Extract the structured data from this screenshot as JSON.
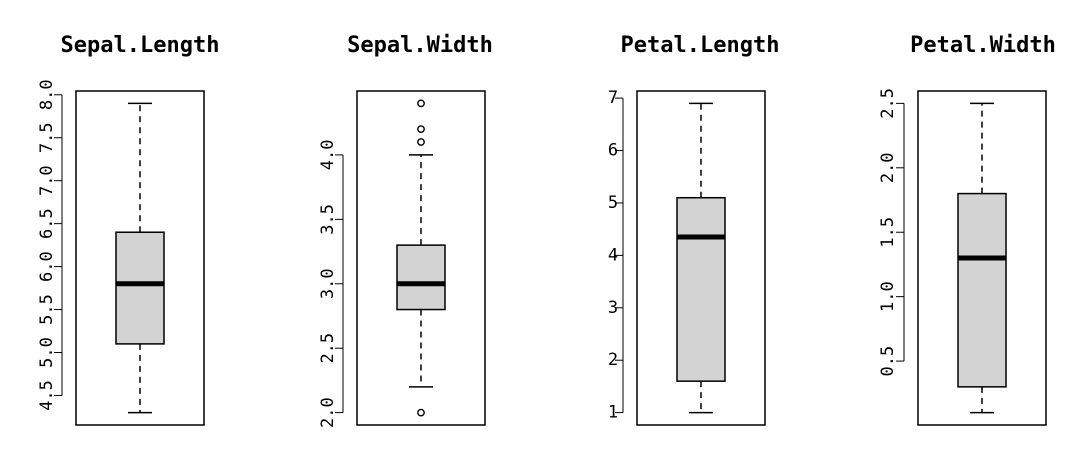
{
  "chart_data": [
    {
      "type": "boxplot",
      "title": "Sepal.Length",
      "ylim": [
        4.3,
        7.9
      ],
      "yticks": [
        4.5,
        5.0,
        5.5,
        6.0,
        6.5,
        7.0,
        7.5,
        8.0
      ],
      "ytick_labels": [
        "4.5",
        "5.0",
        "5.5",
        "6.0",
        "6.5",
        "7.0",
        "7.5",
        "8.0"
      ],
      "ytick_rotation": "vertical",
      "stats": {
        "whisker_low": 4.3,
        "q1": 5.1,
        "median": 5.8,
        "q3": 6.4,
        "whisker_high": 7.9
      },
      "outliers": []
    },
    {
      "type": "boxplot",
      "title": "Sepal.Width",
      "ylim": [
        2.0,
        4.4
      ],
      "yticks": [
        2.0,
        2.5,
        3.0,
        3.5,
        4.0
      ],
      "ytick_labels": [
        "2.0",
        "2.5",
        "3.0",
        "3.5",
        "4.0"
      ],
      "ytick_rotation": "vertical",
      "stats": {
        "whisker_low": 2.2,
        "q1": 2.8,
        "median": 3.0,
        "q3": 3.3,
        "whisker_high": 4.0
      },
      "outliers": [
        2.0,
        4.1,
        4.2,
        4.4
      ]
    },
    {
      "type": "boxplot",
      "title": "Petal.Length",
      "ylim": [
        1.0,
        6.9
      ],
      "yticks": [
        1,
        2,
        3,
        4,
        5,
        6,
        7
      ],
      "ytick_labels": [
        "1",
        "2",
        "3",
        "4",
        "5",
        "6",
        "7"
      ],
      "ytick_rotation": "horizontal",
      "stats": {
        "whisker_low": 1.0,
        "q1": 1.6,
        "median": 4.35,
        "q3": 5.1,
        "whisker_high": 6.9
      },
      "outliers": []
    },
    {
      "type": "boxplot",
      "title": "Petal.Width",
      "ylim": [
        0.1,
        2.5
      ],
      "yticks": [
        0.5,
        1.0,
        1.5,
        2.0,
        2.5
      ],
      "ytick_labels": [
        "0.5",
        "1.0",
        "1.5",
        "2.0",
        "2.5"
      ],
      "ytick_rotation": "vertical",
      "stats": {
        "whisker_low": 0.1,
        "q1": 0.3,
        "median": 1.3,
        "q3": 1.8,
        "whisker_high": 2.5
      },
      "outliers": []
    }
  ],
  "colors": {
    "box_fill": "#d3d3d3",
    "stroke": "#000000",
    "background": "#ffffff"
  }
}
